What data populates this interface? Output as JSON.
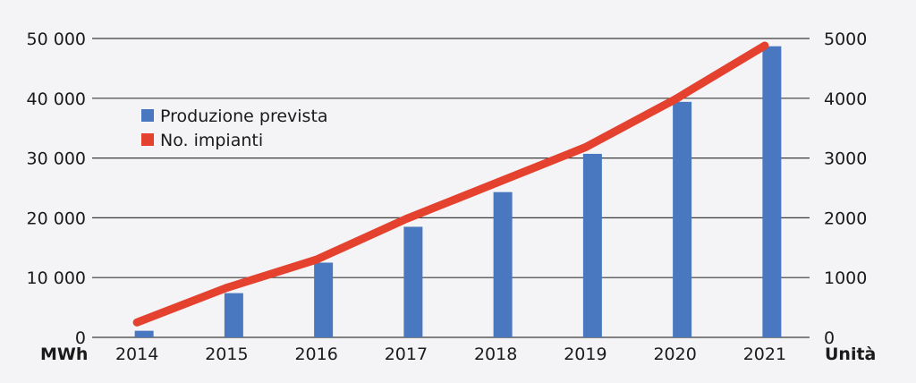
{
  "chart_data": {
    "type": "bar+line",
    "categories": [
      "2014",
      "2015",
      "2016",
      "2017",
      "2018",
      "2019",
      "2020",
      "2021"
    ],
    "series": [
      {
        "name": "Produzione prevista",
        "type": "bar",
        "axis": "left",
        "color": "#4a78c0",
        "values": [
          1100,
          7400,
          12500,
          18500,
          24300,
          30700,
          39400,
          48700
        ]
      },
      {
        "name": "No. impianti",
        "type": "line",
        "axis": "right",
        "color": "#e4412f",
        "values": [
          250,
          830,
          1300,
          1980,
          2580,
          3180,
          3980,
          4880
        ]
      }
    ],
    "y_left": {
      "unit_label": "MWh",
      "ylim": [
        0,
        50000
      ],
      "ticks": [
        0,
        10000,
        20000,
        30000,
        40000,
        50000
      ],
      "tick_labels": [
        "0",
        "10 000",
        "20 000",
        "30 000",
        "40 000",
        "50 000"
      ]
    },
    "y_right": {
      "unit_label": "Unità",
      "ylim": [
        0,
        5000
      ],
      "ticks": [
        0,
        1000,
        2000,
        3000,
        4000,
        5000
      ],
      "tick_labels": [
        "0",
        "1000",
        "2000",
        "3000",
        "4000",
        "5000"
      ]
    },
    "grid": true,
    "legend_position": "top-left"
  }
}
